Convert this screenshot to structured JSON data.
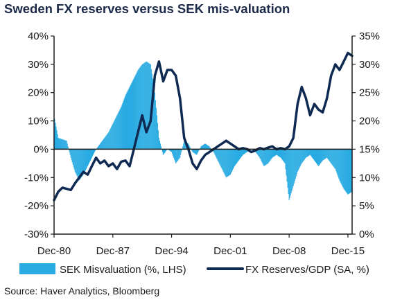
{
  "chart_data": {
    "type": "bar+line",
    "title": "Sweden FX reserves versus SEK mis-valuation",
    "source": "Source: Haver Analytics, Bloomberg",
    "x_range": [
      "1980-12",
      "2016-06"
    ],
    "x_ticks": [
      "Dec-80",
      "Dec-87",
      "Dec-94",
      "Dec-01",
      "Dec-08",
      "Dec-15"
    ],
    "y_left": {
      "min": -30,
      "max": 40,
      "step": 10,
      "ticks": [
        "-30%",
        "-20%",
        "-10%",
        "0%",
        "10%",
        "20%",
        "30%",
        "40%"
      ]
    },
    "y_right": {
      "min": 0,
      "max": 35,
      "step": 5,
      "ticks": [
        "0%",
        "5%",
        "10%",
        "15%",
        "20%",
        "25%",
        "30%",
        "35%"
      ]
    },
    "colors": {
      "bars": "#29abe2",
      "line": "#0f2a52",
      "axis": "#1a1a1a"
    },
    "series": [
      {
        "name": "SEK Misvaluation (%, LHS)",
        "type": "bar",
        "axis": "left",
        "points": [
          [
            "1980-12",
            12
          ],
          [
            "1981-06",
            4
          ],
          [
            "1982-06",
            3
          ],
          [
            "1982-12",
            -3
          ],
          [
            "1983-06",
            -8
          ],
          [
            "1983-12",
            -11
          ],
          [
            "1984-06",
            -9
          ],
          [
            "1984-12",
            -6
          ],
          [
            "1985-06",
            -3
          ],
          [
            "1985-12",
            0
          ],
          [
            "1986-06",
            2
          ],
          [
            "1986-12",
            4
          ],
          [
            "1987-06",
            6
          ],
          [
            "1987-12",
            9
          ],
          [
            "1988-06",
            12
          ],
          [
            "1988-12",
            15
          ],
          [
            "1989-06",
            19
          ],
          [
            "1989-12",
            22
          ],
          [
            "1990-06",
            25
          ],
          [
            "1990-12",
            28
          ],
          [
            "1991-06",
            30
          ],
          [
            "1991-12",
            31
          ],
          [
            "1992-06",
            30
          ],
          [
            "1992-12",
            20
          ],
          [
            "1993-06",
            4
          ],
          [
            "1993-12",
            -2
          ],
          [
            "1994-06",
            0
          ],
          [
            "1994-12",
            -1
          ],
          [
            "1995-06",
            -5
          ],
          [
            "1995-12",
            -3
          ],
          [
            "1996-06",
            3
          ],
          [
            "1996-12",
            2
          ],
          [
            "1997-06",
            -1
          ],
          [
            "1997-12",
            -2
          ],
          [
            "1998-06",
            1
          ],
          [
            "1998-12",
            2
          ],
          [
            "1999-06",
            1
          ],
          [
            "1999-12",
            -1
          ],
          [
            "2000-06",
            -4
          ],
          [
            "2000-12",
            -7
          ],
          [
            "2001-06",
            -10
          ],
          [
            "2001-12",
            -9
          ],
          [
            "2002-06",
            -6
          ],
          [
            "2002-12",
            -4
          ],
          [
            "2003-06",
            -2
          ],
          [
            "2003-12",
            -1
          ],
          [
            "2004-06",
            0
          ],
          [
            "2004-12",
            -1
          ],
          [
            "2005-06",
            -3
          ],
          [
            "2005-12",
            -6
          ],
          [
            "2006-06",
            -5
          ],
          [
            "2006-12",
            -3
          ],
          [
            "2007-06",
            -2
          ],
          [
            "2007-12",
            -3
          ],
          [
            "2008-06",
            -5
          ],
          [
            "2008-12",
            -18
          ],
          [
            "2009-06",
            -13
          ],
          [
            "2009-12",
            -8
          ],
          [
            "2010-06",
            -5
          ],
          [
            "2010-12",
            -3
          ],
          [
            "2011-06",
            -2
          ],
          [
            "2011-12",
            -4
          ],
          [
            "2012-06",
            -6
          ],
          [
            "2012-12",
            -4
          ],
          [
            "2013-06",
            -3
          ],
          [
            "2013-12",
            -5
          ],
          [
            "2014-06",
            -7
          ],
          [
            "2014-12",
            -11
          ],
          [
            "2015-06",
            -14
          ],
          [
            "2015-12",
            -16
          ],
          [
            "2016-06",
            -15
          ]
        ]
      },
      {
        "name": "FX Reserves/GDP (SA, %)",
        "type": "line",
        "axis": "right",
        "points": [
          [
            "1980-12",
            6.0
          ],
          [
            "1981-06",
            7.5
          ],
          [
            "1981-12",
            8.2
          ],
          [
            "1982-06",
            8.0
          ],
          [
            "1982-12",
            7.8
          ],
          [
            "1983-06",
            9.0
          ],
          [
            "1983-12",
            10.0
          ],
          [
            "1984-06",
            11.0
          ],
          [
            "1984-12",
            10.5
          ],
          [
            "1985-06",
            12.0
          ],
          [
            "1985-12",
            13.5
          ],
          [
            "1986-06",
            12.5
          ],
          [
            "1986-12",
            13.0
          ],
          [
            "1987-06",
            12.0
          ],
          [
            "1987-12",
            12.5
          ],
          [
            "1988-06",
            11.5
          ],
          [
            "1988-12",
            12.8
          ],
          [
            "1989-06",
            13.0
          ],
          [
            "1989-12",
            12.0
          ],
          [
            "1990-06",
            15.0
          ],
          [
            "1990-12",
            18.0
          ],
          [
            "1991-06",
            21.0
          ],
          [
            "1991-12",
            18.0
          ],
          [
            "1992-06",
            20.0
          ],
          [
            "1992-12",
            28.0
          ],
          [
            "1993-06",
            30.5
          ],
          [
            "1993-12",
            27.0
          ],
          [
            "1994-06",
            29.0
          ],
          [
            "1994-12",
            29.0
          ],
          [
            "1995-06",
            28.0
          ],
          [
            "1995-12",
            24.0
          ],
          [
            "1996-06",
            17.0
          ],
          [
            "1996-12",
            15.0
          ],
          [
            "1997-06",
            12.5
          ],
          [
            "1997-12",
            11.5
          ],
          [
            "1998-06",
            13.0
          ],
          [
            "1998-12",
            14.0
          ],
          [
            "1999-06",
            14.5
          ],
          [
            "1999-12",
            15.0
          ],
          [
            "2000-06",
            15.5
          ],
          [
            "2000-12",
            16.0
          ],
          [
            "2001-06",
            16.5
          ],
          [
            "2001-12",
            16.0
          ],
          [
            "2002-06",
            15.5
          ],
          [
            "2002-12",
            15.0
          ],
          [
            "2003-06",
            15.2
          ],
          [
            "2003-12",
            15.0
          ],
          [
            "2004-06",
            14.5
          ],
          [
            "2004-12",
            14.8
          ],
          [
            "2005-06",
            15.2
          ],
          [
            "2005-12",
            15.0
          ],
          [
            "2006-06",
            15.3
          ],
          [
            "2006-12",
            15.5
          ],
          [
            "2007-06",
            15.0
          ],
          [
            "2007-12",
            15.2
          ],
          [
            "2008-06",
            15.0
          ],
          [
            "2008-12",
            15.5
          ],
          [
            "2009-06",
            17.0
          ],
          [
            "2009-12",
            23.0
          ],
          [
            "2010-06",
            26.0
          ],
          [
            "2010-12",
            24.0
          ],
          [
            "2011-06",
            21.0
          ],
          [
            "2011-12",
            23.0
          ],
          [
            "2012-06",
            22.0
          ],
          [
            "2012-12",
            21.5
          ],
          [
            "2013-06",
            24.0
          ],
          [
            "2013-12",
            28.0
          ],
          [
            "2014-06",
            30.0
          ],
          [
            "2014-12",
            29.0
          ],
          [
            "2015-06",
            30.5
          ],
          [
            "2015-12",
            32.0
          ],
          [
            "2016-06",
            31.5
          ]
        ]
      }
    ]
  }
}
